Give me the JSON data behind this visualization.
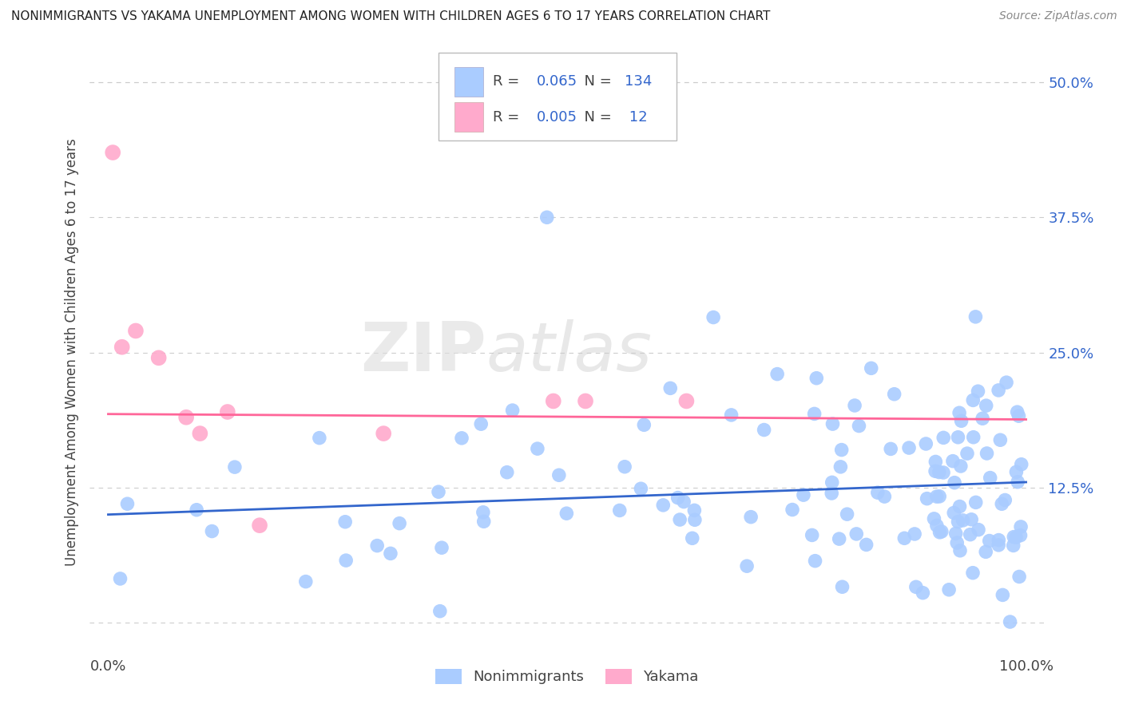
{
  "title": "NONIMMIGRANTS VS YAKAMA UNEMPLOYMENT AMONG WOMEN WITH CHILDREN AGES 6 TO 17 YEARS CORRELATION CHART",
  "source": "Source: ZipAtlas.com",
  "ylabel": "Unemployment Among Women with Children Ages 6 to 17 years",
  "xlim": [
    -0.02,
    1.02
  ],
  "ylim": [
    -0.03,
    0.53
  ],
  "yticks": [
    0.0,
    0.125,
    0.25,
    0.375,
    0.5
  ],
  "yticklabels": [
    "",
    "12.5%",
    "25.0%",
    "37.5%",
    "50.0%"
  ],
  "background_color": "#ffffff",
  "grid_color": "#cccccc",
  "nonimmigrant_color": "#aaccff",
  "yakama_color": "#ffaacc",
  "nonimmigrant_line_color": "#3366cc",
  "yakama_line_color": "#ff6699",
  "watermark_zip": "ZIP",
  "watermark_atlas": "atlas",
  "legend_R1": "0.065",
  "legend_N1": "134",
  "legend_R2": "0.005",
  "legend_N2": " 12",
  "blue_text_color": "#3366cc",
  "label_color": "#444444",
  "source_color": "#888888"
}
